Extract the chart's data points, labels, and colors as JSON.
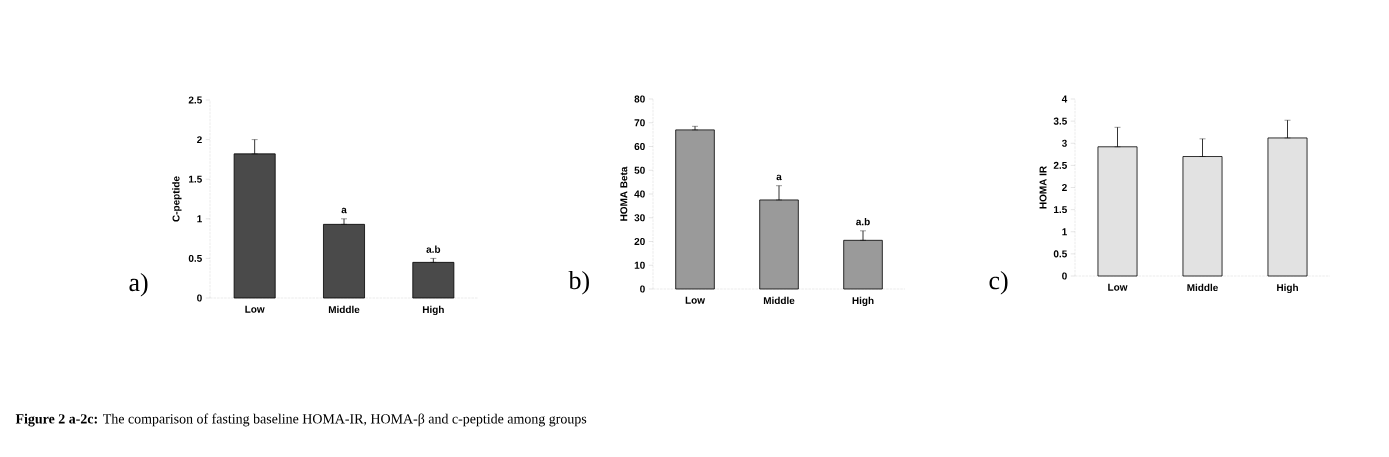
{
  "chart_data": [
    {
      "type": "bar",
      "categories": [
        "Low",
        "Middle",
        "High"
      ],
      "values": [
        1.82,
        0.93,
        0.45
      ],
      "errors": [
        [
          1.82,
          2.0
        ],
        [
          0.93,
          1.0
        ],
        [
          0.45,
          0.5
        ]
      ],
      "color": "#4a4a4a",
      "ylabel": "C-peptide",
      "ylim": [
        0,
        2.5
      ],
      "yticks": [
        0,
        0.5,
        1,
        1.5,
        2,
        2.5
      ],
      "annotations": [
        "a)",
        {
          "text": "a",
          "x": "Middle",
          "y": 1.0
        },
        {
          "text": "a.b",
          "x": "High",
          "y": 0.5
        },
        "**Figure 2 a-2c:** The comparison of fasting baseline HOMA-IR, HOMA-β and c-peptide among groups"
      ]
    },
    {
      "type": "bar",
      "categories": [
        "Low",
        "Middle",
        "High"
      ],
      "values": [
        67,
        37.5,
        20.5
      ],
      "errors": [
        [
          67,
          68.5
        ],
        [
          37.5,
          43.5
        ],
        [
          20.5,
          24.5
        ]
      ],
      "color": "#9a9a9a",
      "ylabel": "HOMA Beta",
      "ylim": [
        0,
        80
      ],
      "yticks": [
        0,
        10,
        20,
        30,
        40,
        50,
        60,
        70,
        80
      ],
      "annotations": [
        "b)",
        {
          "text": "a",
          "x": "Middle",
          "y": 43.5
        },
        {
          "text": "a.b",
          "x": "High",
          "y": 24.5
        }
      ]
    },
    {
      "type": "bar",
      "categories": [
        "Low",
        "Middle",
        "High"
      ],
      "values": [
        2.92,
        2.7,
        3.12
      ],
      "errors": [
        [
          2.92,
          3.36
        ],
        [
          2.7,
          3.1
        ],
        [
          3.12,
          3.52
        ]
      ],
      "color": "#e2e2e2",
      "ylabel": "HOMA IR",
      "ylim": [
        0,
        4
      ],
      "yticks": [
        0,
        0.5,
        1,
        1.5,
        2,
        2.5,
        3,
        3.5,
        4
      ],
      "annotations": [
        "c)"
      ]
    }
  ]
}
